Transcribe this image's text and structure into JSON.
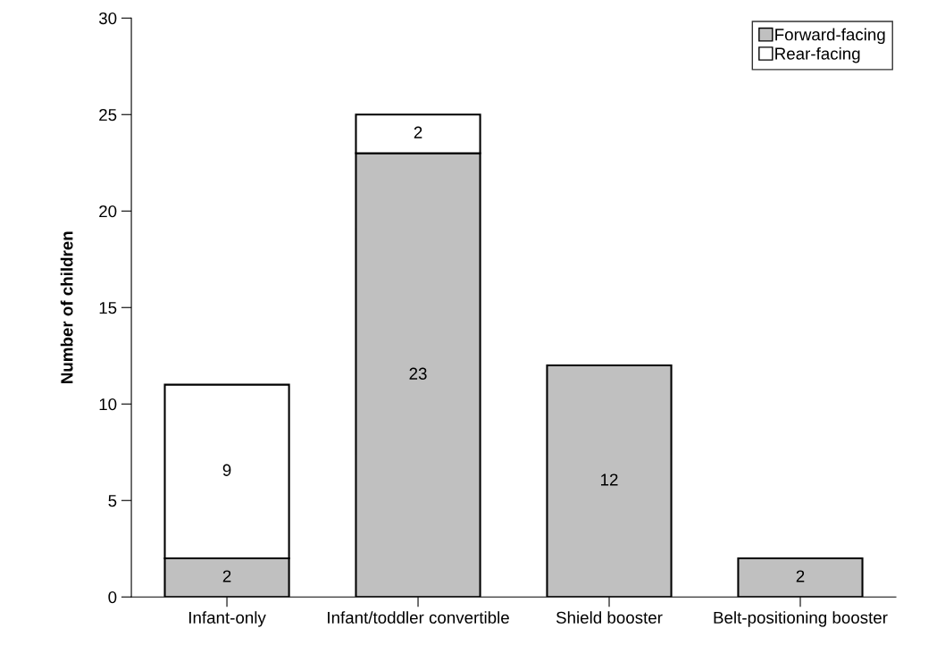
{
  "chart_data": {
    "type": "bar",
    "stacked": true,
    "ylabel": "Number of children",
    "categories": [
      "Infant-only",
      "Infant/toddler convertible",
      "Shield booster",
      "Belt-positioning booster"
    ],
    "series": [
      {
        "name": "Forward-facing",
        "color": "#c0c0c0",
        "values": [
          2,
          23,
          12,
          2
        ],
        "value_labels": [
          "2",
          "23",
          "12",
          "2"
        ]
      },
      {
        "name": "Rear-facing",
        "color": "#ffffff",
        "values": [
          9,
          2,
          null,
          null
        ],
        "value_labels": [
          "9",
          "2",
          null,
          null
        ]
      }
    ],
    "ylim": [
      0,
      30
    ],
    "yticks": [
      0,
      5,
      10,
      15,
      20,
      25,
      30
    ],
    "grid": false,
    "legend": "top right"
  }
}
